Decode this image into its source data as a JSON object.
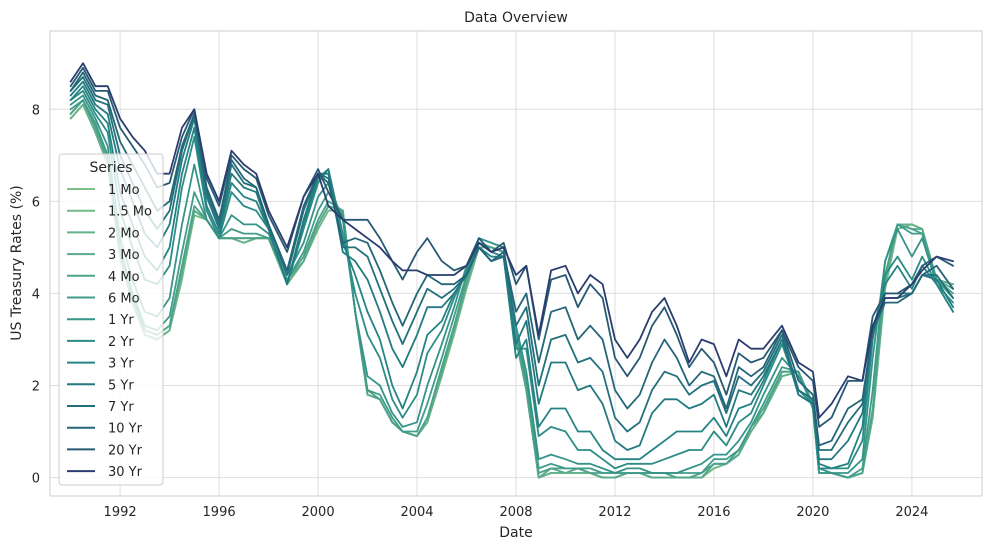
{
  "chart_data": {
    "type": "line",
    "title": "Data Overview",
    "xlabel": "Date",
    "ylabel": "US Treasury Rates (%)",
    "xlim": [
      "1989-03-01",
      "2026-11-01"
    ],
    "ylim": [
      -0.4,
      9.7
    ],
    "x_ticks": [
      "1992",
      "1996",
      "2000",
      "2004",
      "2008",
      "2012",
      "2016",
      "2020",
      "2024"
    ],
    "y_ticks": [
      0,
      2,
      4,
      6,
      8
    ],
    "grid": true,
    "legend": {
      "title": "Series",
      "placement": "center-left"
    },
    "x": [
      "1990-01-01",
      "1990-07-01",
      "1991-01-01",
      "1991-07-01",
      "1992-01-01",
      "1992-07-01",
      "1993-01-01",
      "1993-07-01",
      "1994-01-01",
      "1994-07-01",
      "1995-01-01",
      "1995-07-01",
      "1996-01-01",
      "1996-07-01",
      "1997-01-01",
      "1997-07-01",
      "1998-01-01",
      "1998-10-01",
      "1999-06-01",
      "2000-01-01",
      "2000-06-01",
      "2001-01-01",
      "2001-07-01",
      "2002-01-01",
      "2002-07-01",
      "2003-01-01",
      "2003-06-01",
      "2004-01-01",
      "2004-06-01",
      "2005-01-01",
      "2005-07-01",
      "2006-01-01",
      "2006-07-01",
      "2007-01-01",
      "2007-07-01",
      "2008-01-01",
      "2008-06-01",
      "2008-12-01",
      "2009-06-01",
      "2010-01-01",
      "2010-07-01",
      "2011-01-01",
      "2011-07-01",
      "2012-01-01",
      "2012-07-01",
      "2013-01-01",
      "2013-07-01",
      "2014-01-01",
      "2014-07-01",
      "2015-01-01",
      "2015-07-01",
      "2016-01-01",
      "2016-07-01",
      "2017-01-01",
      "2017-07-01",
      "2018-01-01",
      "2018-10-01",
      "2019-06-01",
      "2020-01-01",
      "2020-04-01",
      "2020-10-01",
      "2021-06-01",
      "2022-01-01",
      "2022-06-01",
      "2022-12-01",
      "2023-06-01",
      "2024-01-01",
      "2024-06-01",
      "2025-01-01",
      "2025-09-01"
    ],
    "series": [
      {
        "name": "1 Mo",
        "color": "#7fbf8a",
        "values": [
          7.8,
          8.1,
          7.5,
          6.8,
          4.8,
          3.8,
          3.1,
          3.0,
          3.2,
          4.3,
          5.7,
          5.6,
          5.2,
          5.2,
          5.1,
          5.2,
          5.2,
          4.2,
          4.7,
          5.4,
          5.8,
          5.8,
          3.6,
          1.8,
          1.7,
          1.2,
          1.0,
          0.9,
          1.2,
          2.2,
          3.1,
          4.1,
          5.0,
          5.0,
          4.9,
          3.0,
          1.9,
          0.0,
          0.1,
          0.1,
          0.1,
          0.1,
          0.0,
          0.0,
          0.1,
          0.1,
          0.0,
          0.0,
          0.0,
          0.0,
          0.0,
          0.2,
          0.3,
          0.5,
          1.0,
          1.4,
          2.2,
          2.3,
          1.5,
          0.1,
          0.1,
          0.0,
          0.1,
          1.3,
          4.1,
          5.4,
          5.5,
          5.4,
          4.3,
          4.2
        ]
      },
      {
        "name": "1.5 Mo",
        "color": "#72b88a",
        "values": [
          7.8,
          8.1,
          7.5,
          6.8,
          4.8,
          3.8,
          3.1,
          3.0,
          3.2,
          4.4,
          5.7,
          5.6,
          5.2,
          5.2,
          5.1,
          5.2,
          5.2,
          4.2,
          4.7,
          5.4,
          5.8,
          5.8,
          3.6,
          1.8,
          1.7,
          1.2,
          1.0,
          0.9,
          1.2,
          2.2,
          3.2,
          4.1,
          5.0,
          5.0,
          4.9,
          3.0,
          1.9,
          0.0,
          0.1,
          0.1,
          0.1,
          0.1,
          0.0,
          0.0,
          0.1,
          0.1,
          0.0,
          0.0,
          0.0,
          0.0,
          0.0,
          0.2,
          0.3,
          0.5,
          1.0,
          1.4,
          2.2,
          2.3,
          1.5,
          0.1,
          0.1,
          0.0,
          0.1,
          1.3,
          4.1,
          5.4,
          5.5,
          5.4,
          4.3,
          4.2
        ]
      },
      {
        "name": "2 Mo",
        "color": "#65b18a",
        "values": [
          7.8,
          8.1,
          7.5,
          6.8,
          4.8,
          3.8,
          3.1,
          3.0,
          3.2,
          4.4,
          5.8,
          5.6,
          5.2,
          5.2,
          5.1,
          5.2,
          5.2,
          4.2,
          4.7,
          5.5,
          5.9,
          5.8,
          3.6,
          1.8,
          1.7,
          1.2,
          1.0,
          0.9,
          1.2,
          2.3,
          3.2,
          4.2,
          5.0,
          5.0,
          4.9,
          3.0,
          1.9,
          0.0,
          0.1,
          0.1,
          0.1,
          0.1,
          0.0,
          0.0,
          0.1,
          0.1,
          0.0,
          0.0,
          0.0,
          0.0,
          0.0,
          0.3,
          0.3,
          0.5,
          1.0,
          1.4,
          2.2,
          2.3,
          1.5,
          0.1,
          0.1,
          0.0,
          0.1,
          1.4,
          4.2,
          5.5,
          5.5,
          5.4,
          4.3,
          4.2
        ]
      },
      {
        "name": "3 Mo",
        "color": "#58aa8a",
        "values": [
          7.9,
          8.2,
          7.6,
          6.9,
          4.9,
          3.9,
          3.2,
          3.1,
          3.3,
          4.5,
          5.8,
          5.6,
          5.2,
          5.2,
          5.2,
          5.2,
          5.2,
          4.3,
          4.7,
          5.5,
          5.9,
          5.8,
          3.6,
          1.8,
          1.7,
          1.2,
          1.0,
          0.9,
          1.3,
          2.3,
          3.2,
          4.2,
          5.1,
          5.0,
          4.9,
          3.1,
          1.9,
          0.0,
          0.2,
          0.1,
          0.2,
          0.1,
          0.0,
          0.0,
          0.1,
          0.1,
          0.0,
          0.0,
          0.0,
          0.0,
          0.0,
          0.3,
          0.3,
          0.5,
          1.1,
          1.4,
          2.3,
          2.3,
          1.5,
          0.1,
          0.1,
          0.0,
          0.1,
          1.4,
          4.3,
          5.5,
          5.4,
          5.4,
          4.3,
          4.1
        ]
      },
      {
        "name": "4 Mo",
        "color": "#4ca389",
        "values": [
          7.9,
          8.2,
          7.6,
          6.9,
          4.9,
          3.9,
          3.2,
          3.1,
          3.3,
          4.6,
          5.9,
          5.6,
          5.2,
          5.2,
          5.2,
          5.2,
          5.2,
          4.3,
          4.8,
          5.6,
          6.0,
          5.8,
          3.6,
          1.9,
          1.7,
          1.2,
          1.0,
          0.9,
          1.3,
          2.4,
          3.3,
          4.3,
          5.1,
          5.0,
          4.9,
          3.1,
          2.0,
          0.1,
          0.2,
          0.2,
          0.2,
          0.1,
          0.1,
          0.1,
          0.1,
          0.1,
          0.1,
          0.1,
          0.0,
          0.0,
          0.1,
          0.3,
          0.3,
          0.6,
          1.1,
          1.5,
          2.3,
          2.3,
          1.5,
          0.1,
          0.1,
          0.0,
          0.1,
          1.5,
          4.4,
          5.5,
          5.4,
          5.3,
          4.3,
          4.0
        ]
      },
      {
        "name": "6 Mo",
        "color": "#409c89",
        "values": [
          8.0,
          8.2,
          7.7,
          7.0,
          5.0,
          4.0,
          3.3,
          3.2,
          3.5,
          4.9,
          6.2,
          5.6,
          5.2,
          5.4,
          5.3,
          5.3,
          5.2,
          4.3,
          4.9,
          5.8,
          6.2,
          5.7,
          3.6,
          1.9,
          1.8,
          1.3,
          1.0,
          1.0,
          1.6,
          2.6,
          3.5,
          4.4,
          5.2,
          5.1,
          5.0,
          3.2,
          2.1,
          0.2,
          0.3,
          0.2,
          0.2,
          0.2,
          0.1,
          0.1,
          0.1,
          0.1,
          0.1,
          0.1,
          0.1,
          0.1,
          0.1,
          0.4,
          0.4,
          0.6,
          1.1,
          1.6,
          2.4,
          2.3,
          1.6,
          0.1,
          0.1,
          0.0,
          0.2,
          1.9,
          4.7,
          5.5,
          5.3,
          5.3,
          4.3,
          3.9
        ]
      },
      {
        "name": "1 Yr",
        "color": "#359488",
        "values": [
          8.1,
          8.3,
          7.8,
          7.2,
          5.2,
          4.3,
          3.6,
          3.5,
          3.9,
          5.5,
          6.8,
          5.6,
          5.2,
          5.7,
          5.5,
          5.5,
          5.3,
          4.4,
          5.1,
          6.1,
          6.4,
          5.6,
          3.6,
          2.2,
          2.0,
          1.4,
          1.1,
          1.2,
          2.0,
          2.9,
          3.7,
          4.6,
          5.2,
          5.1,
          5.0,
          3.3,
          2.3,
          0.4,
          0.5,
          0.4,
          0.3,
          0.3,
          0.2,
          0.1,
          0.2,
          0.2,
          0.1,
          0.1,
          0.1,
          0.2,
          0.3,
          0.5,
          0.5,
          0.8,
          1.2,
          1.8,
          2.6,
          2.2,
          1.6,
          0.2,
          0.1,
          0.1,
          0.4,
          2.6,
          4.7,
          5.4,
          4.8,
          5.2,
          4.2,
          3.8
        ]
      },
      {
        "name": "2 Yr",
        "color": "#2c8c86",
        "values": [
          8.2,
          8.4,
          7.9,
          7.5,
          5.8,
          5.0,
          4.3,
          4.2,
          4.6,
          6.3,
          7.4,
          5.8,
          5.2,
          6.2,
          5.9,
          5.8,
          5.4,
          4.2,
          5.4,
          6.4,
          6.7,
          5.3,
          4.0,
          3.1,
          2.6,
          1.7,
          1.3,
          1.8,
          2.7,
          3.2,
          3.9,
          4.5,
          5.1,
          4.9,
          4.8,
          2.8,
          2.8,
          0.9,
          1.1,
          1.0,
          0.6,
          0.6,
          0.4,
          0.2,
          0.3,
          0.3,
          0.3,
          0.4,
          0.5,
          0.6,
          0.6,
          1.0,
          0.7,
          1.2,
          1.4,
          2.0,
          2.9,
          1.9,
          1.6,
          0.2,
          0.2,
          0.2,
          0.8,
          3.0,
          4.4,
          4.8,
          4.3,
          4.8,
          4.2,
          3.6
        ]
      },
      {
        "name": "3 Yr",
        "color": "#258383",
        "values": [
          8.2,
          8.5,
          8.0,
          7.7,
          6.2,
          5.5,
          4.8,
          4.5,
          5.0,
          6.6,
          7.6,
          5.9,
          5.3,
          6.4,
          6.1,
          6.0,
          5.4,
          4.2,
          5.5,
          6.5,
          6.7,
          5.1,
          4.4,
          3.6,
          3.0,
          2.0,
          1.5,
          2.3,
          3.1,
          3.4,
          4.0,
          4.4,
          5.0,
          4.8,
          4.8,
          2.6,
          3.0,
          1.1,
          1.5,
          1.5,
          1.0,
          1.0,
          0.6,
          0.4,
          0.4,
          0.4,
          0.6,
          0.8,
          1.0,
          1.0,
          1.0,
          1.3,
          0.9,
          1.5,
          1.6,
          2.1,
          3.0,
          1.8,
          1.6,
          0.3,
          0.2,
          0.3,
          1.1,
          3.2,
          4.2,
          4.6,
          4.1,
          4.6,
          4.2,
          3.6
        ]
      },
      {
        "name": "5 Yr",
        "color": "#227a80",
        "values": [
          8.3,
          8.6,
          8.1,
          7.9,
          6.7,
          6.0,
          5.3,
          5.0,
          5.5,
          6.9,
          7.8,
          6.1,
          5.4,
          6.6,
          6.3,
          6.2,
          5.4,
          4.2,
          5.6,
          6.6,
          6.6,
          4.9,
          4.7,
          4.3,
          3.6,
          2.8,
          2.4,
          3.1,
          3.7,
          3.7,
          4.0,
          4.4,
          5.0,
          4.7,
          4.8,
          2.9,
          3.4,
          1.6,
          2.5,
          2.5,
          1.9,
          2.0,
          1.6,
          0.8,
          0.6,
          0.7,
          1.4,
          1.7,
          1.7,
          1.5,
          1.6,
          1.8,
          1.1,
          1.9,
          1.8,
          2.2,
          3.0,
          1.8,
          1.6,
          0.4,
          0.4,
          0.8,
          1.4,
          3.1,
          4.0,
          4.0,
          4.0,
          4.4,
          4.3,
          3.7
        ]
      },
      {
        "name": "7 Yr",
        "color": "#22707c",
        "values": [
          8.4,
          8.7,
          8.2,
          8.1,
          7.0,
          6.4,
          5.8,
          5.4,
          5.8,
          7.1,
          7.9,
          6.2,
          5.5,
          6.8,
          6.4,
          6.3,
          5.5,
          4.4,
          5.8,
          6.6,
          6.5,
          5.0,
          5.0,
          4.8,
          4.1,
          3.4,
          2.9,
          3.6,
          4.1,
          3.9,
          4.1,
          4.4,
          5.0,
          4.7,
          4.8,
          3.3,
          3.7,
          2.0,
          3.0,
          3.1,
          2.5,
          2.6,
          2.3,
          1.3,
          1.0,
          1.2,
          1.9,
          2.3,
          2.2,
          1.8,
          2.0,
          2.1,
          1.4,
          2.2,
          2.0,
          2.3,
          3.1,
          1.9,
          1.7,
          0.6,
          0.6,
          1.2,
          1.6,
          3.2,
          3.9,
          3.9,
          4.0,
          4.4,
          4.4,
          3.9
        ]
      },
      {
        "name": "10 Yr",
        "color": "#246678",
        "values": [
          8.4,
          8.8,
          8.3,
          8.2,
          7.3,
          6.8,
          6.3,
          5.8,
          6.0,
          7.2,
          7.9,
          6.3,
          5.6,
          6.9,
          6.5,
          6.3,
          5.5,
          4.5,
          5.9,
          6.6,
          6.4,
          5.1,
          5.2,
          5.1,
          4.5,
          3.8,
          3.3,
          4.0,
          4.4,
          4.2,
          4.2,
          4.4,
          5.0,
          4.7,
          4.9,
          3.6,
          4.0,
          2.5,
          3.6,
          3.7,
          3.0,
          3.3,
          3.0,
          1.9,
          1.5,
          1.8,
          2.5,
          3.0,
          2.6,
          2.0,
          2.3,
          2.2,
          1.5,
          2.4,
          2.2,
          2.4,
          3.2,
          2.1,
          1.8,
          0.7,
          0.8,
          1.5,
          1.7,
          3.2,
          3.8,
          3.8,
          4.0,
          4.4,
          4.6,
          4.1
        ]
      },
      {
        "name": "20 Yr",
        "color": "#275a72",
        "values": [
          8.5,
          8.9,
          8.4,
          8.4,
          7.6,
          7.2,
          6.8,
          6.3,
          6.4,
          7.4,
          8.0,
          6.5,
          5.9,
          7.0,
          6.7,
          6.5,
          5.7,
          4.9,
          6.1,
          6.7,
          6.2,
          5.6,
          5.6,
          5.6,
          5.2,
          4.7,
          4.3,
          4.9,
          5.2,
          4.7,
          4.5,
          4.6,
          5.2,
          4.9,
          5.1,
          4.2,
          4.6,
          3.0,
          4.3,
          4.4,
          3.7,
          4.2,
          3.9,
          2.6,
          2.2,
          2.6,
          3.3,
          3.7,
          3.1,
          2.4,
          2.8,
          2.5,
          1.8,
          2.7,
          2.5,
          2.6,
          3.2,
          2.4,
          2.1,
          1.1,
          1.3,
          2.1,
          2.1,
          3.5,
          4.0,
          4.0,
          4.2,
          4.6,
          4.8,
          4.6
        ]
      },
      {
        "name": "30 Yr",
        "color": "#2a3d6e",
        "values": [
          8.6,
          9.0,
          8.5,
          8.5,
          7.8,
          7.4,
          7.1,
          6.6,
          6.6,
          7.6,
          8.0,
          6.6,
          6.0,
          7.1,
          6.8,
          6.6,
          5.8,
          5.0,
          6.1,
          6.6,
          5.9,
          5.6,
          5.4,
          5.2,
          5.0,
          4.7,
          4.5,
          4.5,
          4.4,
          4.4,
          4.4,
          4.6,
          5.1,
          4.9,
          5.0,
          4.4,
          4.6,
          3.1,
          4.5,
          4.6,
          4.0,
          4.4,
          4.2,
          3.0,
          2.6,
          3.0,
          3.6,
          3.9,
          3.3,
          2.5,
          3.0,
          2.9,
          2.2,
          3.0,
          2.8,
          2.8,
          3.3,
          2.5,
          2.3,
          1.3,
          1.6,
          2.2,
          2.1,
          3.3,
          3.9,
          3.9,
          4.2,
          4.5,
          4.8,
          4.7
        ]
      }
    ]
  }
}
